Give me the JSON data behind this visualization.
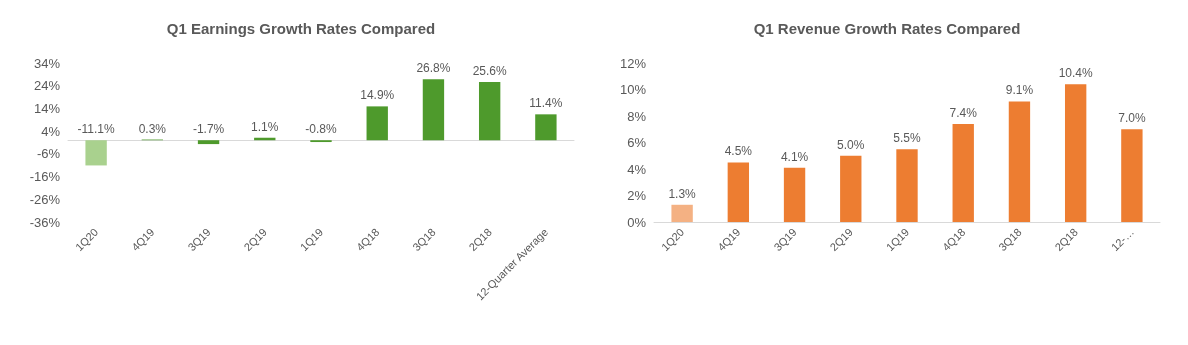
{
  "chart_data": [
    {
      "type": "bar",
      "title": "Q1 Earnings Growth Rates Compared",
      "categories": [
        "1Q20",
        "4Q19",
        "3Q19",
        "2Q19",
        "1Q19",
        "4Q18",
        "3Q18",
        "2Q18",
        "12-Quarter Average"
      ],
      "values": [
        -11.1,
        0.3,
        -1.7,
        1.1,
        -0.8,
        14.9,
        26.8,
        25.6,
        11.4
      ],
      "colors": [
        "#a9d18e",
        "#4e9a2c",
        "#4e9a2c",
        "#4e9a2c",
        "#4e9a2c",
        "#4e9a2c",
        "#4e9a2c",
        "#4e9a2c",
        "#4e9a2c"
      ],
      "value_labels": [
        "-11.1%",
        "0.3%",
        "-1.7%",
        "1.1%",
        "-0.8%",
        "14.9%",
        "26.8%",
        "25.6%",
        "11.4%"
      ],
      "ylim": [
        -36,
        34
      ],
      "yticks": [
        {
          "value": -36,
          "label": "-36%"
        },
        {
          "value": -26,
          "label": "-26%"
        },
        {
          "value": -16,
          "label": "-16%"
        },
        {
          "value": -6,
          "label": "-6%"
        },
        {
          "value": 4,
          "label": "4%"
        },
        {
          "value": 14,
          "label": "14%"
        },
        {
          "value": 24,
          "label": "24%"
        },
        {
          "value": 34,
          "label": "34%"
        }
      ]
    },
    {
      "type": "bar",
      "title": "Q1 Revenue Growth Rates Compared",
      "categories": [
        "1Q20",
        "4Q19",
        "3Q19",
        "2Q19",
        "1Q19",
        "4Q18",
        "3Q18",
        "2Q18",
        "12-…"
      ],
      "values": [
        1.3,
        4.5,
        4.1,
        5.0,
        5.5,
        7.4,
        9.1,
        10.4,
        7.0
      ],
      "colors": [
        "#f4b183",
        "#ed7d31",
        "#ed7d31",
        "#ed7d31",
        "#ed7d31",
        "#ed7d31",
        "#ed7d31",
        "#ed7d31",
        "#ed7d31"
      ],
      "value_labels": [
        "1.3%",
        "4.5%",
        "4.1%",
        "5.0%",
        "5.5%",
        "7.4%",
        "9.1%",
        "10.4%",
        "7.0%"
      ],
      "ylim": [
        0,
        12
      ],
      "yticks": [
        {
          "value": 0,
          "label": "0%"
        },
        {
          "value": 2,
          "label": "2%"
        },
        {
          "value": 4,
          "label": "4%"
        },
        {
          "value": 6,
          "label": "6%"
        },
        {
          "value": 8,
          "label": "8%"
        },
        {
          "value": 10,
          "label": "10%"
        },
        {
          "value": 12,
          "label": "12%"
        }
      ]
    }
  ]
}
